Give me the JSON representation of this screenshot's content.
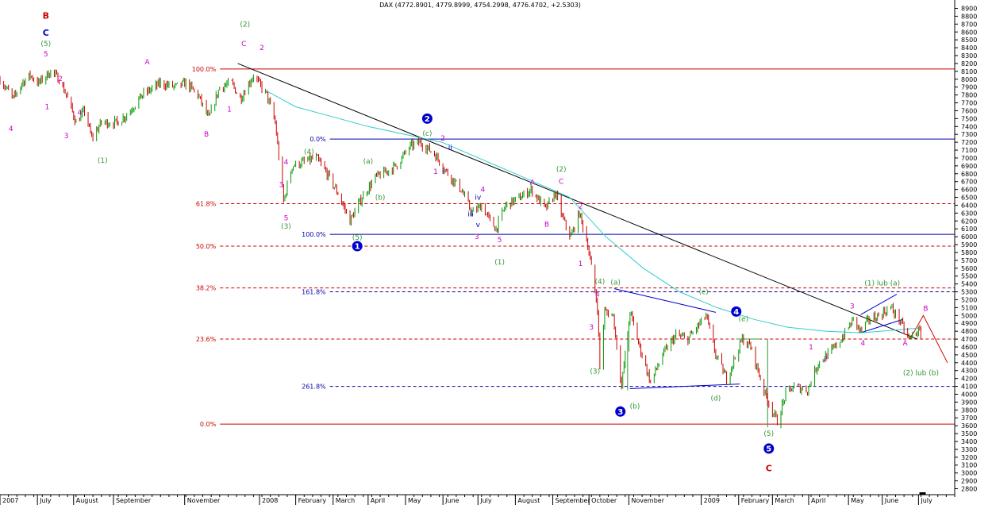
{
  "chart_data": {
    "type": "candlestick",
    "title": "DAX (4772.8901, 4779.8999, 4754.2998, 4776.4702, +2.5303)",
    "yaxis": {
      "position": "right",
      "ylim": [
        2800,
        8900
      ],
      "step": 100
    },
    "xaxis": {
      "range": [
        "2007-06-01",
        "2009-07-31"
      ],
      "labels": [
        {
          "date": "2007-06-01",
          "text": "2007"
        },
        {
          "date": "2007-07-02",
          "text": "July"
        },
        {
          "date": "2007-08-01",
          "text": "August"
        },
        {
          "date": "2007-09-03",
          "text": "September"
        },
        {
          "date": "2007-11-01",
          "text": "November"
        },
        {
          "date": "2008-01-02",
          "text": "2008"
        },
        {
          "date": "2008-02-01",
          "text": "February"
        },
        {
          "date": "2008-03-03",
          "text": "March"
        },
        {
          "date": "2008-04-01",
          "text": "April"
        },
        {
          "date": "2008-05-02",
          "text": "May"
        },
        {
          "date": "2008-06-02",
          "text": "June"
        },
        {
          "date": "2008-07-01",
          "text": "July"
        },
        {
          "date": "2008-08-01",
          "text": "August"
        },
        {
          "date": "2008-09-01",
          "text": "September"
        },
        {
          "date": "2008-10-01",
          "text": "October"
        },
        {
          "date": "2008-11-03",
          "text": "November"
        },
        {
          "date": "2009-01-02",
          "text": "2009"
        },
        {
          "date": "2009-02-02",
          "text": "February"
        },
        {
          "date": "2009-03-02",
          "text": "March"
        },
        {
          "date": "2009-04-01",
          "text": "April"
        },
        {
          "date": "2009-05-04",
          "text": "May"
        },
        {
          "date": "2009-06-01",
          "text": "June"
        },
        {
          "date": "2009-07-01",
          "text": "July"
        }
      ]
    },
    "price_path": [
      [
        "2007-06-01",
        8000
      ],
      [
        "2007-06-12",
        7750
      ],
      [
        "2007-06-19",
        7950
      ],
      [
        "2007-06-26",
        8050
      ],
      [
        "2007-07-03",
        7950
      ],
      [
        "2007-07-13",
        8100
      ],
      [
        "2007-07-20",
        8000
      ],
      [
        "2007-07-26",
        7800
      ],
      [
        "2007-08-03",
        7450
      ],
      [
        "2007-08-10",
        7600
      ],
      [
        "2007-08-16",
        7250
      ],
      [
        "2007-08-24",
        7450
      ],
      [
        "2007-09-06",
        7450
      ],
      [
        "2007-09-14",
        7550
      ],
      [
        "2007-09-27",
        7800
      ],
      [
        "2007-10-12",
        7950
      ],
      [
        "2007-10-24",
        7900
      ],
      [
        "2007-11-02",
        7950
      ],
      [
        "2007-11-12",
        7800
      ],
      [
        "2007-11-21",
        7500
      ],
      [
        "2007-11-30",
        7900
      ],
      [
        "2007-12-10",
        7950
      ],
      [
        "2007-12-17",
        7750
      ],
      [
        "2007-12-28",
        8050
      ],
      [
        "2008-01-08",
        7800
      ],
      [
        "2008-01-15",
        7450
      ],
      [
        "2008-01-22",
        6450
      ],
      [
        "2008-01-29",
        6900
      ],
      [
        "2008-02-08",
        6950
      ],
      [
        "2008-02-18",
        7000
      ],
      [
        "2008-02-27",
        6800
      ],
      [
        "2008-03-07",
        6550
      ],
      [
        "2008-03-17",
        6200
      ],
      [
        "2008-03-27",
        6500
      ],
      [
        "2008-04-07",
        6750
      ],
      [
        "2008-04-24",
        6900
      ],
      [
        "2008-05-06",
        7150
      ],
      [
        "2008-05-14",
        7200
      ],
      [
        "2008-05-26",
        7050
      ],
      [
        "2008-06-06",
        6800
      ],
      [
        "2008-06-17",
        6600
      ],
      [
        "2008-06-26",
        6300
      ],
      [
        "2008-07-04",
        6400
      ],
      [
        "2008-07-11",
        6200
      ],
      [
        "2008-07-16",
        6100
      ],
      [
        "2008-07-24",
        6400
      ],
      [
        "2008-08-05",
        6500
      ],
      [
        "2008-08-14",
        6600
      ],
      [
        "2008-08-26",
        6350
      ],
      [
        "2008-09-03",
        6550
      ],
      [
        "2008-09-10",
        6200
      ],
      [
        "2008-09-16",
        6000
      ],
      [
        "2008-09-23",
        6300
      ],
      [
        "2008-09-30",
        5900
      ],
      [
        "2008-10-08",
        5100
      ],
      [
        "2008-10-10",
        4350
      ],
      [
        "2008-10-14",
        5050
      ],
      [
        "2008-10-21",
        5000
      ],
      [
        "2008-10-28",
        4100
      ],
      [
        "2008-11-04",
        5050
      ],
      [
        "2008-11-11",
        4650
      ],
      [
        "2008-11-21",
        4150
      ],
      [
        "2008-12-01",
        4500
      ],
      [
        "2008-12-12",
        4750
      ],
      [
        "2008-12-22",
        4700
      ],
      [
        "2009-01-06",
        5000
      ],
      [
        "2009-01-14",
        4500
      ],
      [
        "2009-01-23",
        4200
      ],
      [
        "2009-02-05",
        4700
      ],
      [
        "2009-02-12",
        4600
      ],
      [
        "2009-02-24",
        4000
      ],
      [
        "2009-03-06",
        3650
      ],
      [
        "2009-03-13",
        4000
      ],
      [
        "2009-03-20",
        4100
      ],
      [
        "2009-03-31",
        4050
      ],
      [
        "2009-04-09",
        4400
      ],
      [
        "2009-04-20",
        4550
      ],
      [
        "2009-04-28",
        4700
      ],
      [
        "2009-05-08",
        4950
      ],
      [
        "2009-05-14",
        4800
      ],
      [
        "2009-05-21",
        4950
      ],
      [
        "2009-05-29",
        5000
      ],
      [
        "2009-06-08",
        5100
      ],
      [
        "2009-06-15",
        4950
      ],
      [
        "2009-06-23",
        4700
      ],
      [
        "2009-06-30",
        4800
      ],
      [
        "2009-07-03",
        4780
      ]
    ],
    "moving_average": [
      [
        "2008-01-08",
        7850
      ],
      [
        "2008-02-01",
        7650
      ],
      [
        "2008-04-01",
        7400
      ],
      [
        "2008-06-01",
        7200
      ],
      [
        "2008-08-01",
        6800
      ],
      [
        "2008-09-15",
        6500
      ],
      [
        "2008-10-15",
        6000
      ],
      [
        "2008-11-15",
        5600
      ],
      [
        "2008-12-15",
        5300
      ],
      [
        "2009-01-15",
        5100
      ],
      [
        "2009-02-15",
        4950
      ],
      [
        "2009-03-15",
        4850
      ],
      [
        "2009-04-15",
        4800
      ],
      [
        "2009-05-15",
        4780
      ],
      [
        "2009-06-15",
        4820
      ],
      [
        "2009-07-01",
        4840
      ]
    ],
    "trendline": [
      [
        "2007-12-15",
        8200
      ],
      [
        "2009-06-30",
        4700
      ]
    ],
    "fib_levels": [
      {
        "price": 8130,
        "label": "100.0%",
        "color": "#cc0000",
        "style": "solid",
        "label_date": "2007-11-04"
      },
      {
        "price": 6420,
        "label": "61.8%",
        "color": "#cc0000",
        "style": "dashed",
        "label_date": "2007-11-04"
      },
      {
        "price": 5880,
        "label": "50.0%",
        "color": "#cc0000",
        "style": "dashed",
        "label_date": "2007-11-04"
      },
      {
        "price": 5350,
        "label": "38.2%",
        "color": "#cc0000",
        "style": "dashed",
        "label_date": "2007-11-04"
      },
      {
        "price": 4700,
        "label": "23.6%",
        "color": "#cc0000",
        "style": "dashed",
        "label_date": "2007-11-04"
      },
      {
        "price": 3620,
        "label": "0.0%",
        "color": "#cc0000",
        "style": "solid",
        "label_date": "2007-11-04"
      },
      {
        "price": 7240,
        "label": "0.0%",
        "color": "#0000aa",
        "style": "solid",
        "label_date": "2008-02-03"
      },
      {
        "price": 6030,
        "label": "100.0%",
        "color": "#0000aa",
        "style": "solid",
        "label_date": "2008-02-03"
      },
      {
        "price": 5300,
        "label": "161.8%",
        "color": "#0000aa",
        "style": "dashed",
        "label_date": "2008-02-03"
      },
      {
        "price": 4100,
        "label": "261.8%",
        "color": "#0000aa",
        "style": "dashed",
        "label_date": "2008-02-03"
      }
    ],
    "annotations": [
      {
        "text": "B",
        "date": "2007-07-09",
        "price": 8800,
        "color": "#cc0000",
        "size": 11
      },
      {
        "text": "C",
        "date": "2007-07-09",
        "price": 8580,
        "color": "#0000cc",
        "size": 11
      },
      {
        "text": "(5)",
        "date": "2007-07-09",
        "price": 8450,
        "color": "#339933"
      },
      {
        "text": "5",
        "date": "2007-07-09",
        "price": 8320,
        "color": "#cc00cc"
      },
      {
        "text": "2",
        "date": "2007-07-21",
        "price": 8010,
        "color": "#cc00cc"
      },
      {
        "text": "1",
        "date": "2007-07-10",
        "price": 7650,
        "color": "#cc00cc"
      },
      {
        "text": "4",
        "date": "2007-06-10",
        "price": 7370,
        "color": "#cc00cc"
      },
      {
        "text": "4",
        "date": "2007-08-06",
        "price": 7580,
        "color": "#cc00cc"
      },
      {
        "text": "3",
        "date": "2007-07-26",
        "price": 7280,
        "color": "#cc00cc"
      },
      {
        "text": "(1)",
        "date": "2007-08-25",
        "price": 6970,
        "color": "#339933"
      },
      {
        "text": "A",
        "date": "2007-10-01",
        "price": 8220,
        "color": "#cc00cc"
      },
      {
        "text": "(2)",
        "date": "2007-12-21",
        "price": 8700,
        "color": "#339933"
      },
      {
        "text": "C",
        "date": "2007-12-20",
        "price": 8450,
        "color": "#cc00cc"
      },
      {
        "text": "2",
        "date": "2008-01-04",
        "price": 8400,
        "color": "#cc00cc"
      },
      {
        "text": "1",
        "date": "2007-12-08",
        "price": 7620,
        "color": "#cc00cc"
      },
      {
        "text": "B",
        "date": "2007-11-19",
        "price": 7300,
        "color": "#cc00cc"
      },
      {
        "text": "4",
        "date": "2008-01-24",
        "price": 6950,
        "color": "#cc00cc"
      },
      {
        "text": "3",
        "date": "2008-01-20",
        "price": 6660,
        "color": "#cc00cc"
      },
      {
        "text": "5",
        "date": "2008-01-24",
        "price": 6240,
        "color": "#cc00cc"
      },
      {
        "text": "(3)",
        "date": "2008-01-24",
        "price": 6130,
        "color": "#339933"
      },
      {
        "text": "(4)",
        "date": "2008-02-12",
        "price": 7080,
        "color": "#339933"
      },
      {
        "text": "(5)",
        "date": "2008-03-23",
        "price": 5990,
        "color": "#339933"
      },
      {
        "text": "(a)",
        "date": "2008-04-01",
        "price": 6960,
        "color": "#339933"
      },
      {
        "text": "(b)",
        "date": "2008-04-11",
        "price": 6500,
        "color": "#339933"
      },
      {
        "text": "(c)",
        "date": "2008-05-20",
        "price": 7310,
        "color": "#339933"
      },
      {
        "text": "2",
        "date": "2008-06-02",
        "price": 7250,
        "color": "#cc00cc"
      },
      {
        "text": "1",
        "date": "2008-05-27",
        "price": 6830,
        "color": "#cc00cc"
      },
      {
        "text": "i",
        "date": "2008-06-02",
        "price": 6830,
        "color": "#0000cc"
      },
      {
        "text": "ii",
        "date": "2008-06-08",
        "price": 7130,
        "color": "#0000cc"
      },
      {
        "text": "iii",
        "date": "2008-06-25",
        "price": 6290,
        "color": "#0000cc"
      },
      {
        "text": "iv",
        "date": "2008-07-01",
        "price": 6500,
        "color": "#0000cc"
      },
      {
        "text": "4",
        "date": "2008-07-05",
        "price": 6600,
        "color": "#cc00cc"
      },
      {
        "text": "v",
        "date": "2008-07-01",
        "price": 6150,
        "color": "#0000cc"
      },
      {
        "text": "3",
        "date": "2008-06-30",
        "price": 6000,
        "color": "#cc00cc"
      },
      {
        "text": "5",
        "date": "2008-07-19",
        "price": 5960,
        "color": "#cc00cc"
      },
      {
        "text": "(1)",
        "date": "2008-07-19",
        "price": 5680,
        "color": "#339933"
      },
      {
        "text": "A",
        "date": "2008-08-15",
        "price": 6690,
        "color": "#cc00cc"
      },
      {
        "text": "B",
        "date": "2008-08-27",
        "price": 6160,
        "color": "#cc00cc"
      },
      {
        "text": "(2)",
        "date": "2008-09-08",
        "price": 6860,
        "color": "#339933"
      },
      {
        "text": "C",
        "date": "2008-09-08",
        "price": 6700,
        "color": "#cc00cc"
      },
      {
        "text": "2",
        "date": "2008-09-24",
        "price": 6390,
        "color": "#cc00cc"
      },
      {
        "text": "1",
        "date": "2008-09-24",
        "price": 5660,
        "color": "#cc00cc"
      },
      {
        "text": "(4)",
        "date": "2008-10-10",
        "price": 5430,
        "color": "#339933"
      },
      {
        "text": "4",
        "date": "2008-10-08",
        "price": 5270,
        "color": "#cc00cc"
      },
      {
        "text": "3",
        "date": "2008-10-03",
        "price": 4850,
        "color": "#cc00cc"
      },
      {
        "text": "(3)",
        "date": "2008-10-06",
        "price": 4290,
        "color": "#339933"
      },
      {
        "text": "(a)",
        "date": "2008-10-23",
        "price": 5420,
        "color": "#339933"
      },
      {
        "text": "(c)",
        "date": "2009-01-04",
        "price": 5300,
        "color": "#339933"
      },
      {
        "text": "(e)",
        "date": "2009-02-06",
        "price": 4960,
        "color": "#339933"
      },
      {
        "text": "(b)",
        "date": "2008-11-08",
        "price": 3850,
        "color": "#339933"
      },
      {
        "text": "(d)",
        "date": "2009-01-14",
        "price": 3950,
        "color": "#339933"
      },
      {
        "text": "(5)",
        "date": "2009-02-27",
        "price": 3500,
        "color": "#339933"
      },
      {
        "text": "C",
        "date": "2009-02-27",
        "price": 3050,
        "color": "#cc0000",
        "size": 11
      },
      {
        "text": "1",
        "date": "2009-04-03",
        "price": 4600,
        "color": "#cc00cc"
      },
      {
        "text": "2",
        "date": "2009-04-15",
        "price": 4450,
        "color": "#cc00cc"
      },
      {
        "text": "3",
        "date": "2009-05-07",
        "price": 5120,
        "color": "#cc00cc"
      },
      {
        "text": "4",
        "date": "2009-05-16",
        "price": 4650,
        "color": "#cc00cc"
      },
      {
        "text": "(1) lub (a)",
        "date": "2009-06-01",
        "price": 5410,
        "color": "#339933"
      },
      {
        "text": "A",
        "date": "2009-06-20",
        "price": 4650,
        "color": "#cc00cc"
      },
      {
        "text": "B",
        "date": "2009-07-07",
        "price": 5090,
        "color": "#cc00cc"
      },
      {
        "text": "(2) lub (b)",
        "date": "2009-07-03",
        "price": 4270,
        "color": "#339933"
      }
    ],
    "wave_circles": [
      {
        "text": "1",
        "date": "2008-03-23",
        "price": 5880,
        "color": "#0000cc"
      },
      {
        "text": "2",
        "date": "2008-05-20",
        "price": 7500,
        "color": "#0000cc"
      },
      {
        "text": "3",
        "date": "2008-10-27",
        "price": 3780,
        "color": "#0000cc"
      },
      {
        "text": "4",
        "date": "2009-01-31",
        "price": 5050,
        "color": "#0000cc"
      },
      {
        "text": "5",
        "date": "2009-02-27",
        "price": 3310,
        "color": "#0000cc"
      }
    ],
    "channel_lines": [
      {
        "from": [
          "2008-10-22",
          5340
        ],
        "to": [
          "2009-01-14",
          5040
        ],
        "color": "#0000cc"
      },
      {
        "from": [
          "2008-11-04",
          4070
        ],
        "to": [
          "2009-02-03",
          4130
        ],
        "color": "#0000cc"
      },
      {
        "from": [
          "2009-05-14",
          5010
        ],
        "to": [
          "2009-06-13",
          5270
        ],
        "color": "#0000cc"
      },
      {
        "from": [
          "2009-05-14",
          4780
        ],
        "to": [
          "2009-06-18",
          4950
        ],
        "color": "#0000cc"
      },
      {
        "from": [
          "2009-01-31",
          4700
        ],
        "to": [
          "2009-02-20",
          4700
        ],
        "color": "#339933"
      },
      {
        "from": [
          "2008-11-02",
          4050
        ],
        "to": [
          "2008-11-02",
          4800
        ],
        "color": "#339933"
      },
      {
        "from": [
          "2009-02-26",
          3580
        ],
        "to": [
          "2009-02-26",
          4700
        ],
        "color": "#339933"
      }
    ],
    "projection": [
      [
        "2009-06-24",
        4700
      ],
      [
        "2009-07-05",
        5000
      ],
      [
        "2009-07-25",
        4400
      ]
    ],
    "projection_color": "#cc0000"
  }
}
